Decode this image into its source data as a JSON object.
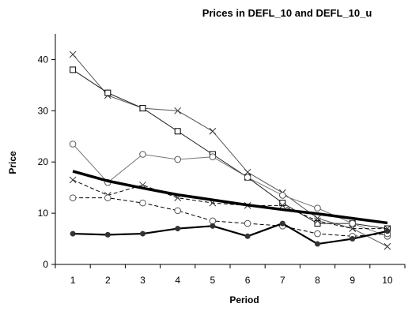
{
  "chart_data": {
    "type": "line",
    "title": "Prices in DEFL_10 and DEFL_10_u",
    "xlabel": "Period",
    "ylabel": "Price",
    "categories": [
      "1",
      "2",
      "3",
      "4",
      "5",
      "6",
      "7",
      "8",
      "9",
      "10"
    ],
    "ylim": [
      0,
      45
    ],
    "yticks": [
      0,
      10,
      20,
      30,
      40
    ],
    "grid": false,
    "legend": "none",
    "series": [
      {
        "style": "thin-cross",
        "values": [
          41,
          33,
          30.5,
          30,
          26,
          18,
          14,
          9,
          7,
          3.5
        ]
      },
      {
        "style": "thin-square",
        "values": [
          38,
          33.5,
          30.5,
          26,
          21.5,
          17,
          12,
          8,
          8,
          7
        ]
      },
      {
        "style": "thin-circle",
        "values": [
          23.5,
          16,
          21.5,
          20.5,
          21,
          17,
          13.5,
          11,
          8,
          5.5
        ]
      },
      {
        "style": "dashed-cross",
        "values": [
          16.5,
          13.5,
          15.5,
          13,
          12,
          11.5,
          11.5,
          8.5,
          7,
          7
        ]
      },
      {
        "style": "dashed-circle",
        "values": [
          13,
          13,
          12,
          10.5,
          8.5,
          8,
          7.5,
          6,
          5.5,
          6
        ]
      },
      {
        "style": "thick-trend",
        "values": [
          18.2,
          16.3,
          14.9,
          13.6,
          12.6,
          11.6,
          10.7,
          9.9,
          9.0,
          8.1
        ]
      },
      {
        "style": "thick-dot",
        "values": [
          6,
          5.8,
          6,
          7,
          7.5,
          5.5,
          8,
          4,
          5,
          6.5
        ]
      }
    ]
  }
}
